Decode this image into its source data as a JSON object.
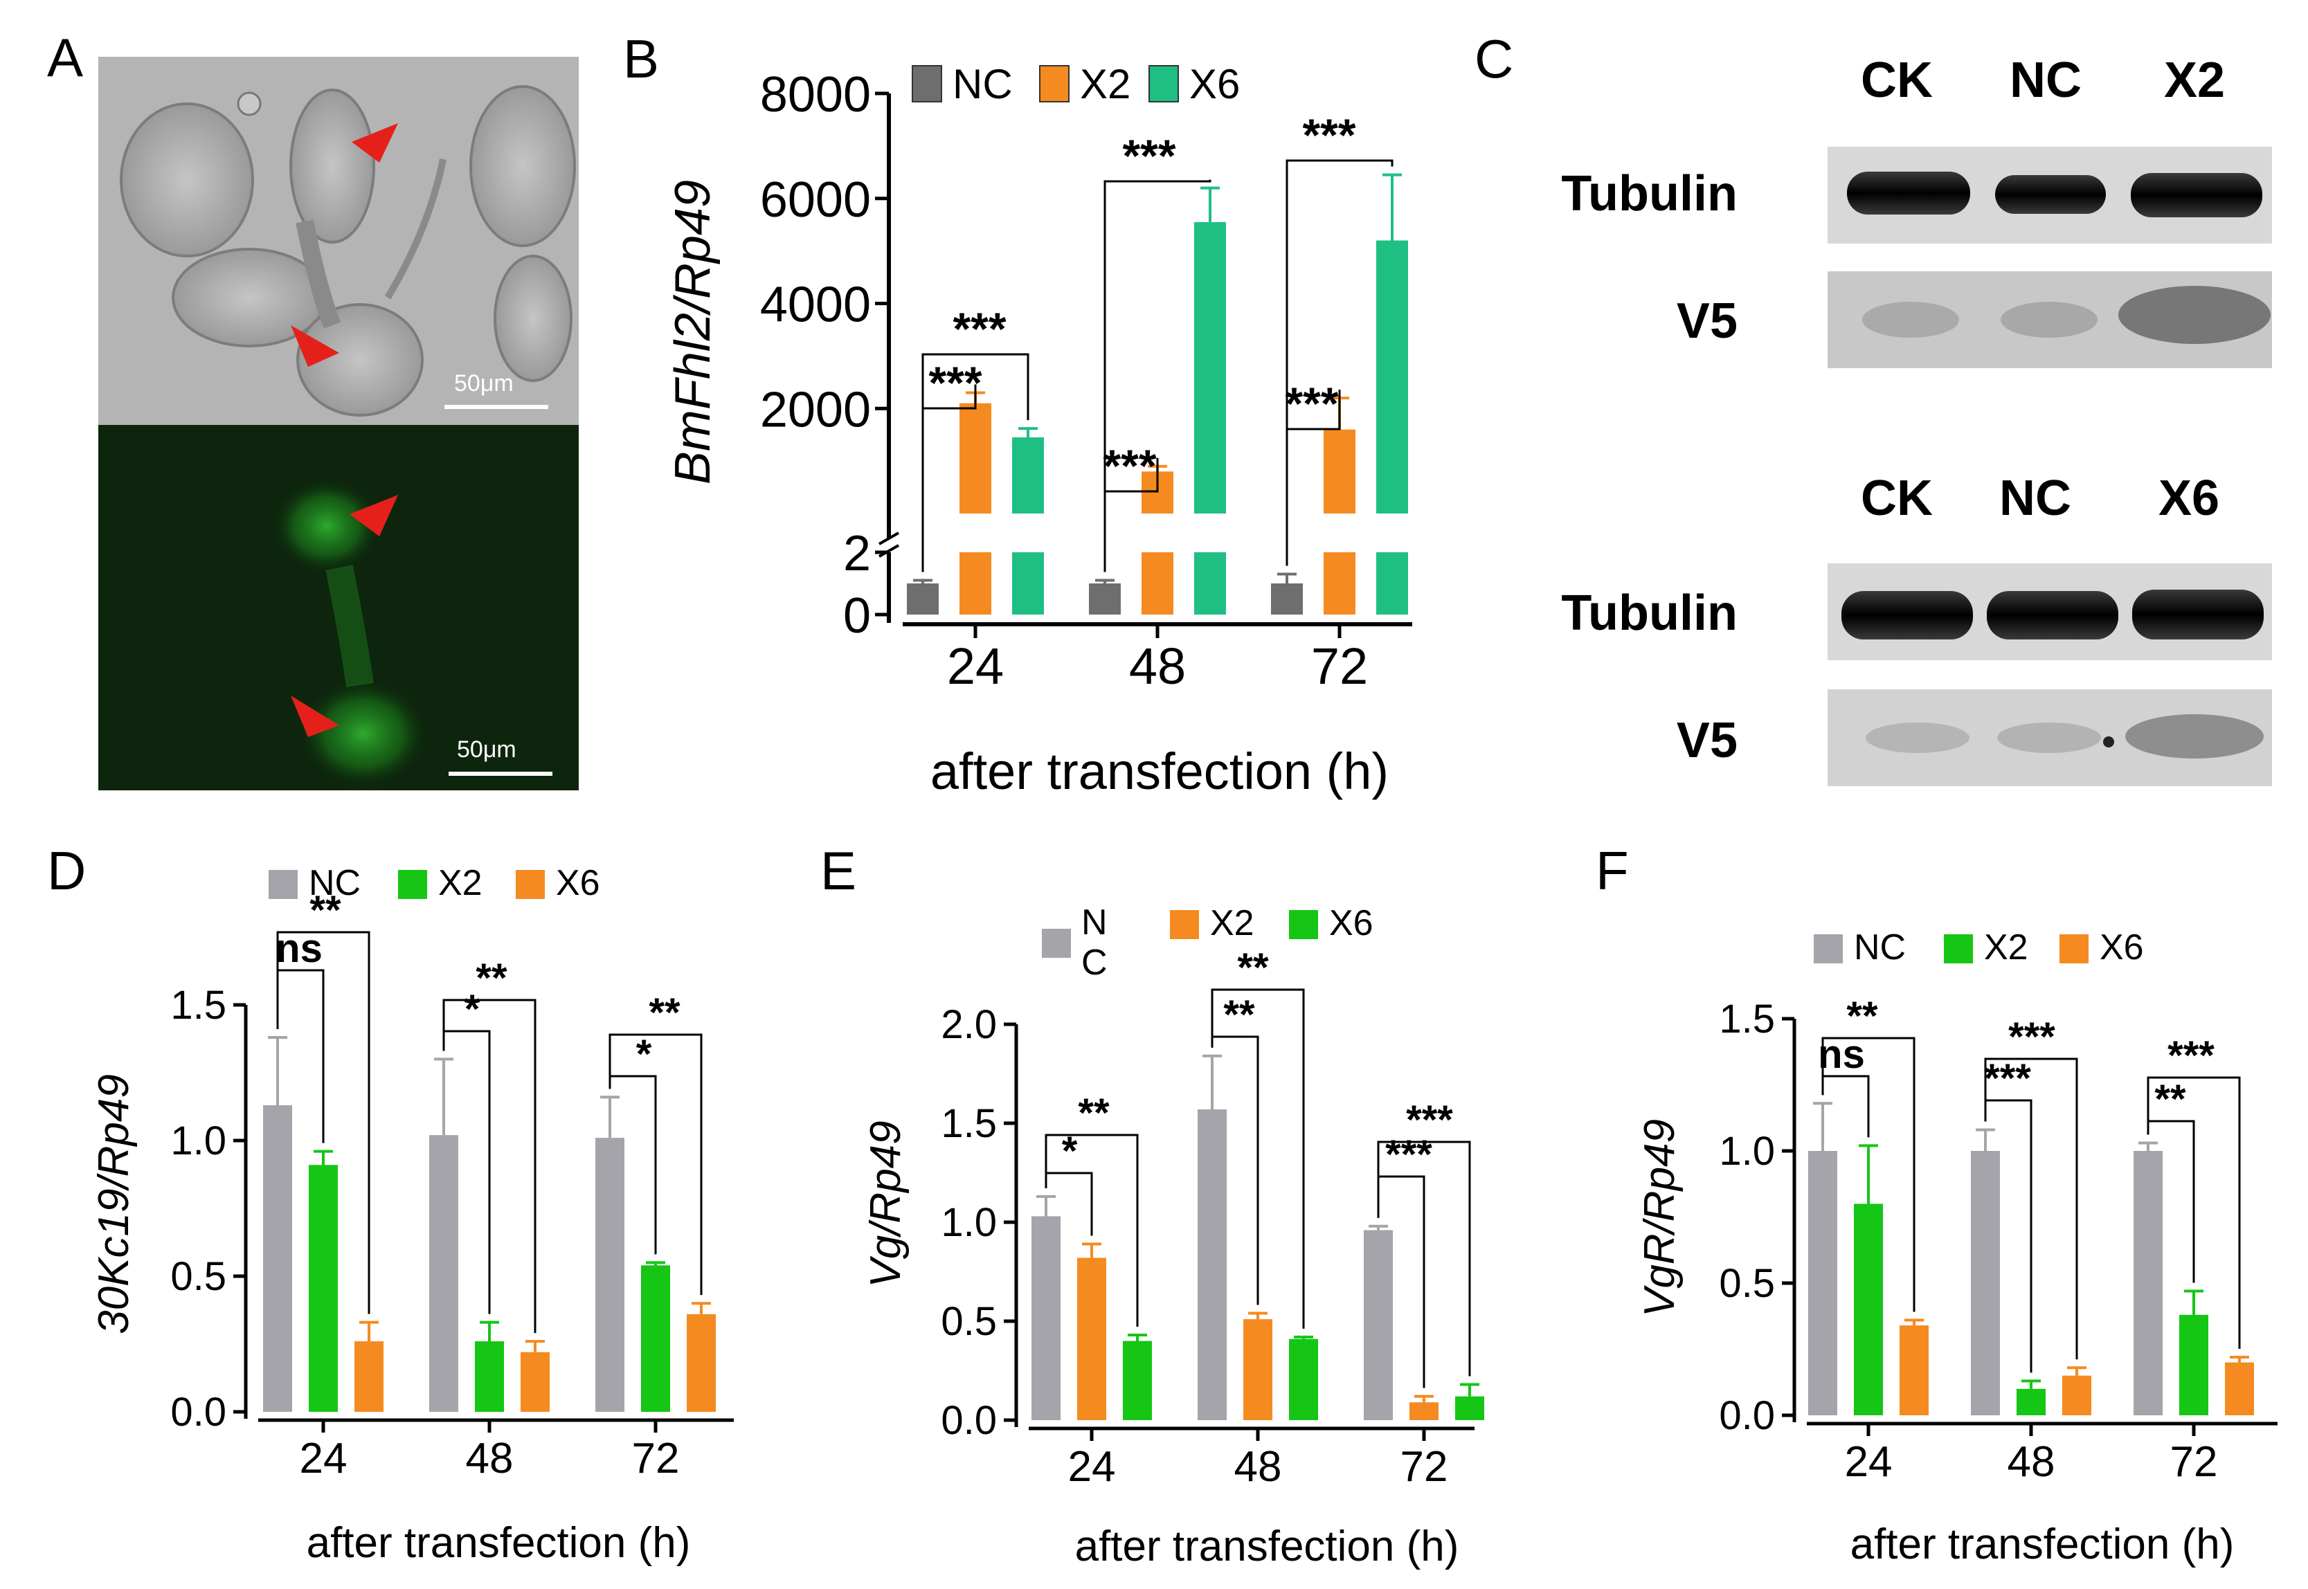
{
  "panels": {
    "A": {
      "letter": "A",
      "scale_top": "50μm",
      "scale_bottom": "50μm",
      "description_marks": "arrowheads"
    },
    "B": {
      "letter": "B",
      "ylabel": "BmFhl2/Rp49",
      "xlabel": "after transfection (h)",
      "upper_ticks": [
        "2000",
        "4000",
        "6000",
        "8000"
      ],
      "lower_ticks": [
        "0",
        "2"
      ],
      "legend": [
        "NC",
        "X2",
        "X6"
      ],
      "sig": [
        "***",
        "***",
        "***",
        "***",
        "***",
        "***"
      ]
    },
    "C": {
      "letter": "C",
      "blot1_lanes": [
        "CK",
        "NC",
        "X2"
      ],
      "blot2_lanes": [
        "CK",
        "NC",
        "X6"
      ],
      "row_tubulin": "Tubulin",
      "row_v5": "V5"
    },
    "D": {
      "letter": "D",
      "ylabel": "30Kc19/Rp49",
      "xlabel": "after transfection (h)",
      "legend": [
        "NC",
        "X2",
        "X6"
      ],
      "sig": [
        "ns",
        "**",
        "*",
        "**",
        "*",
        "**"
      ]
    },
    "E": {
      "letter": "E",
      "ylabel": "Vg/Rp49",
      "xlabel": "after transfection (h)",
      "legend_nc_line1": "N",
      "legend_nc_line2": "C",
      "legend": [
        "NC",
        "X2",
        "X6"
      ],
      "sig": [
        "*",
        "**",
        "**",
        "**",
        "***",
        "***"
      ]
    },
    "F": {
      "letter": "F",
      "ylabel": "VgR/Rp49",
      "xlabel": "after transfection (h)",
      "legend": [
        "NC",
        "X2",
        "X6"
      ],
      "sig": [
        "ns",
        "**",
        "***",
        "***",
        "**",
        "***"
      ]
    }
  },
  "colors": {
    "nc_dark": "#6e6e6e",
    "nc_light": "#a4a4aa",
    "orange": "#f58a20",
    "teal": "#1fbf84",
    "green": "#15c615",
    "arrow": "#e5201b"
  },
  "chart_data": [
    {
      "panel": "B",
      "type": "bar",
      "categories": [
        "24",
        "48",
        "72"
      ],
      "series": [
        {
          "name": "NC",
          "values": [
            1,
            1,
            1
          ],
          "errors": [
            0.1,
            0.1,
            0.3
          ]
        },
        {
          "name": "X2",
          "values": [
            2100,
            800,
            1600
          ],
          "errors": [
            200,
            100,
            600
          ]
        },
        {
          "name": "X6",
          "values": [
            1450,
            5550,
            5200
          ],
          "errors": [
            170,
            650,
            1250
          ]
        }
      ],
      "ylabel": "BmFhl2/Rp49",
      "xlabel": "after transfection (h)",
      "y_axis_break": true,
      "ylim_lower": [
        0,
        2
      ],
      "ylim_upper": [
        0,
        8000
      ],
      "legend_position": "top"
    },
    {
      "panel": "D",
      "type": "bar",
      "categories": [
        "24",
        "48",
        "72"
      ],
      "series": [
        {
          "name": "NC",
          "values": [
            1.13,
            1.02,
            1.01
          ],
          "errors": [
            0.25,
            0.28,
            0.15
          ]
        },
        {
          "name": "X2",
          "values": [
            0.91,
            0.26,
            0.54
          ],
          "errors": [
            0.05,
            0.07,
            0.01
          ]
        },
        {
          "name": "X6",
          "values": [
            0.26,
            0.22,
            0.36
          ],
          "errors": [
            0.07,
            0.04,
            0.04
          ]
        }
      ],
      "ylabel": "30Kc19/Rp49",
      "xlabel": "after transfection (h)",
      "ylim": [
        0,
        1.5
      ],
      "yticks": [
        "0.0",
        "0.5",
        "1.0",
        "1.5"
      ],
      "legend_position": "top"
    },
    {
      "panel": "E",
      "type": "bar",
      "categories": [
        "24",
        "48",
        "72"
      ],
      "series": [
        {
          "name": "NC",
          "values": [
            1.03,
            1.57,
            0.96
          ],
          "errors": [
            0.1,
            0.27,
            0.02
          ]
        },
        {
          "name": "X2",
          "values": [
            0.82,
            0.51,
            0.09
          ],
          "errors": [
            0.07,
            0.03,
            0.03
          ]
        },
        {
          "name": "X6",
          "values": [
            0.4,
            0.41,
            0.12
          ],
          "errors": [
            0.03,
            0.01,
            0.06
          ]
        }
      ],
      "ylabel": "Vg/Rp49",
      "xlabel": "after transfection (h)",
      "ylim": [
        0,
        2.0
      ],
      "yticks": [
        "0.0",
        "0.5",
        "1.0",
        "1.5",
        "2.0"
      ],
      "legend_position": "top"
    },
    {
      "panel": "F",
      "type": "bar",
      "categories": [
        "24",
        "48",
        "72"
      ],
      "series": [
        {
          "name": "NC",
          "values": [
            1.0,
            1.0,
            1.0
          ],
          "errors": [
            0.18,
            0.08,
            0.03
          ]
        },
        {
          "name": "X2",
          "values": [
            0.8,
            0.1,
            0.38
          ],
          "errors": [
            0.22,
            0.03,
            0.09
          ]
        },
        {
          "name": "X6",
          "values": [
            0.34,
            0.15,
            0.2
          ],
          "errors": [
            0.02,
            0.03,
            0.02
          ]
        }
      ],
      "ylabel": "VgR/Rp49",
      "xlabel": "after transfection (h)",
      "ylim": [
        0,
        1.5
      ],
      "yticks": [
        "0.0",
        "0.5",
        "1.0",
        "1.5"
      ],
      "legend_position": "top"
    }
  ]
}
